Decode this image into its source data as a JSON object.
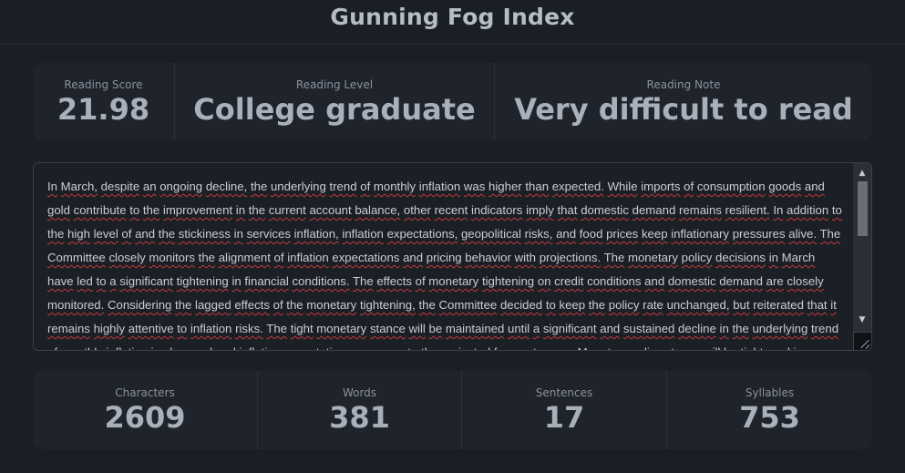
{
  "header": {
    "title": "Gunning Fog Index"
  },
  "summary": {
    "score": {
      "label": "Reading Score",
      "value": "21.98"
    },
    "level": {
      "label": "Reading Level",
      "value": "College graduate"
    },
    "note": {
      "label": "Reading Note",
      "value": "Very difficult to read"
    }
  },
  "editor": {
    "text": "In March, despite an ongoing decline, the underlying trend of monthly inflation was higher than expected. While imports of consumption goods and gold contribute to the improvement in the current account balance, other recent indicators imply that domestic demand remains resilient. In addition to the high level of and the stickiness in services inflation, inflation expectations, geopolitical risks, and food prices keep inflationary pressures alive. The Committee closely monitors the alignment of inflation expectations and pricing behavior with projections. The monetary policy decisions in March have led to a significant tightening in financial conditions. The effects of monetary tightening on credit conditions and domestic demand are closely monitored. Considering the lagged effects of the monetary tightening, the Committee decided to keep the policy rate unchanged, but reiterated that it remains highly attentive to inflation risks. The tight monetary stance will be maintained until a significant and sustained decline in the underlying trend of monthly inflation is observed and inflation expectations converge to the projected forecast range. Monetary policy stance will be tightened in"
  },
  "counts": {
    "characters": {
      "label": "Characters",
      "value": "2609"
    },
    "words": {
      "label": "Words",
      "value": "381"
    },
    "sentences": {
      "label": "Sentences",
      "value": "17"
    },
    "syllables": {
      "label": "Syllables",
      "value": "753"
    }
  }
}
